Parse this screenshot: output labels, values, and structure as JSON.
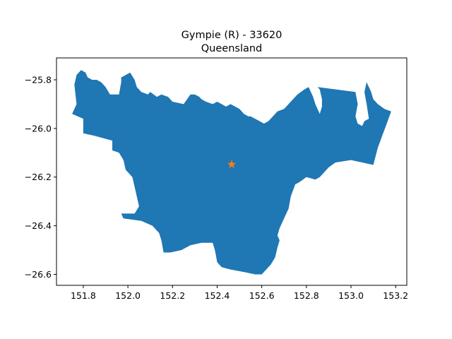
{
  "title": "Gympie (R) - 33620",
  "subtitle": "Queensland",
  "colors": {
    "region_fill": "#1f77b4",
    "marker": "#ff7f0e"
  },
  "marker": {
    "shape": "star",
    "lon": 152.465,
    "lat": -26.148
  },
  "map_data": {
    "type": "choropleth-outline",
    "x_axis": {
      "range": [
        151.68,
        153.25
      ],
      "ticks": [
        151.8,
        152.0,
        152.2,
        152.4,
        152.6,
        152.8,
        153.0,
        153.2
      ],
      "tick_labels": [
        "151.8",
        "152.0",
        "152.2",
        "152.4",
        "152.6",
        "152.8",
        "153.0",
        "153.2"
      ]
    },
    "y_axis": {
      "range": [
        -26.645,
        -25.71
      ],
      "ticks": [
        -25.8,
        -26.0,
        -26.2,
        -26.4,
        -26.6
      ],
      "tick_labels": [
        "−25.8",
        "−26.0",
        "−26.2",
        "−26.4",
        "−26.6"
      ]
    },
    "region_outline": [
      [
        151.75,
        -25.94
      ],
      [
        151.77,
        -25.9
      ],
      [
        151.76,
        -25.82
      ],
      [
        151.77,
        -25.78
      ],
      [
        151.79,
        -25.76
      ],
      [
        151.81,
        -25.77
      ],
      [
        151.82,
        -25.79
      ],
      [
        151.84,
        -25.8
      ],
      [
        151.86,
        -25.8
      ],
      [
        151.88,
        -25.81
      ],
      [
        151.9,
        -25.83
      ],
      [
        151.92,
        -25.86
      ],
      [
        151.96,
        -25.86
      ],
      [
        151.97,
        -25.81
      ],
      [
        151.97,
        -25.79
      ],
      [
        152.01,
        -25.77
      ],
      [
        152.03,
        -25.8
      ],
      [
        152.04,
        -25.83
      ],
      [
        152.06,
        -25.85
      ],
      [
        152.09,
        -25.86
      ],
      [
        152.1,
        -25.85
      ],
      [
        152.13,
        -25.87
      ],
      [
        152.15,
        -25.86
      ],
      [
        152.18,
        -25.87
      ],
      [
        152.2,
        -25.89
      ],
      [
        152.25,
        -25.9
      ],
      [
        152.28,
        -25.86
      ],
      [
        152.3,
        -25.86
      ],
      [
        152.32,
        -25.87
      ],
      [
        152.33,
        -25.88
      ],
      [
        152.35,
        -25.89
      ],
      [
        152.38,
        -25.9
      ],
      [
        152.4,
        -25.89
      ],
      [
        152.42,
        -25.9
      ],
      [
        152.44,
        -25.91
      ],
      [
        152.46,
        -25.9
      ],
      [
        152.5,
        -25.92
      ],
      [
        152.52,
        -25.94
      ],
      [
        152.54,
        -25.95
      ],
      [
        152.55,
        -25.95
      ],
      [
        152.57,
        -25.96
      ],
      [
        152.59,
        -25.97
      ],
      [
        152.61,
        -25.98
      ],
      [
        152.63,
        -25.97
      ],
      [
        152.65,
        -25.95
      ],
      [
        152.67,
        -25.93
      ],
      [
        152.7,
        -25.92
      ],
      [
        152.72,
        -25.9
      ],
      [
        152.74,
        -25.88
      ],
      [
        152.76,
        -25.86
      ],
      [
        152.79,
        -25.84
      ],
      [
        152.81,
        -25.83
      ],
      [
        152.83,
        -25.87
      ],
      [
        152.84,
        -25.9
      ],
      [
        152.85,
        -25.92
      ],
      [
        152.86,
        -25.94
      ],
      [
        152.87,
        -25.91
      ],
      [
        152.87,
        -25.88
      ],
      [
        152.86,
        -25.84
      ],
      [
        152.85,
        -25.83
      ],
      [
        153.02,
        -25.85
      ],
      [
        153.03,
        -25.9
      ],
      [
        153.02,
        -25.95
      ],
      [
        153.03,
        -25.98
      ],
      [
        153.05,
        -25.99
      ],
      [
        153.06,
        -25.97
      ],
      [
        153.08,
        -25.96
      ],
      [
        153.07,
        -25.9
      ],
      [
        153.06,
        -25.85
      ],
      [
        153.07,
        -25.81
      ],
      [
        153.09,
        -25.85
      ],
      [
        153.1,
        -25.88
      ],
      [
        153.12,
        -25.9
      ],
      [
        153.15,
        -25.92
      ],
      [
        153.18,
        -25.93
      ],
      [
        153.16,
        -25.98
      ],
      [
        153.14,
        -26.03
      ],
      [
        153.12,
        -26.08
      ],
      [
        153.1,
        -26.15
      ],
      [
        153.0,
        -26.13
      ],
      [
        152.93,
        -26.14
      ],
      [
        152.9,
        -26.16
      ],
      [
        152.86,
        -26.2
      ],
      [
        152.84,
        -26.21
      ],
      [
        152.8,
        -26.2
      ],
      [
        152.77,
        -26.22
      ],
      [
        152.75,
        -26.23
      ],
      [
        152.73,
        -26.28
      ],
      [
        152.72,
        -26.33
      ],
      [
        152.7,
        -26.37
      ],
      [
        152.68,
        -26.41
      ],
      [
        152.67,
        -26.44
      ],
      [
        152.68,
        -26.46
      ],
      [
        152.67,
        -26.49
      ],
      [
        152.66,
        -26.53
      ],
      [
        152.64,
        -26.56
      ],
      [
        152.62,
        -26.58
      ],
      [
        152.6,
        -26.6
      ],
      [
        152.57,
        -26.6
      ],
      [
        152.52,
        -26.59
      ],
      [
        152.46,
        -26.58
      ],
      [
        152.42,
        -26.57
      ],
      [
        152.4,
        -26.55
      ],
      [
        152.39,
        -26.5
      ],
      [
        152.38,
        -26.47
      ],
      [
        152.33,
        -26.47
      ],
      [
        152.28,
        -26.48
      ],
      [
        152.24,
        -26.5
      ],
      [
        152.19,
        -26.51
      ],
      [
        152.16,
        -26.51
      ],
      [
        152.15,
        -26.46
      ],
      [
        152.14,
        -26.43
      ],
      [
        152.11,
        -26.4
      ],
      [
        152.06,
        -26.38
      ],
      [
        151.98,
        -26.37
      ],
      [
        151.97,
        -26.35
      ],
      [
        152.03,
        -26.35
      ],
      [
        152.05,
        -26.32
      ],
      [
        152.04,
        -26.28
      ],
      [
        152.03,
        -26.24
      ],
      [
        152.02,
        -26.2
      ],
      [
        151.99,
        -26.17
      ],
      [
        151.98,
        -26.13
      ],
      [
        151.96,
        -26.1
      ],
      [
        151.93,
        -26.09
      ],
      [
        151.93,
        -26.05
      ],
      [
        151.85,
        -26.03
      ],
      [
        151.8,
        -26.02
      ],
      [
        151.8,
        -25.96
      ],
      [
        151.75,
        -25.94
      ]
    ]
  }
}
